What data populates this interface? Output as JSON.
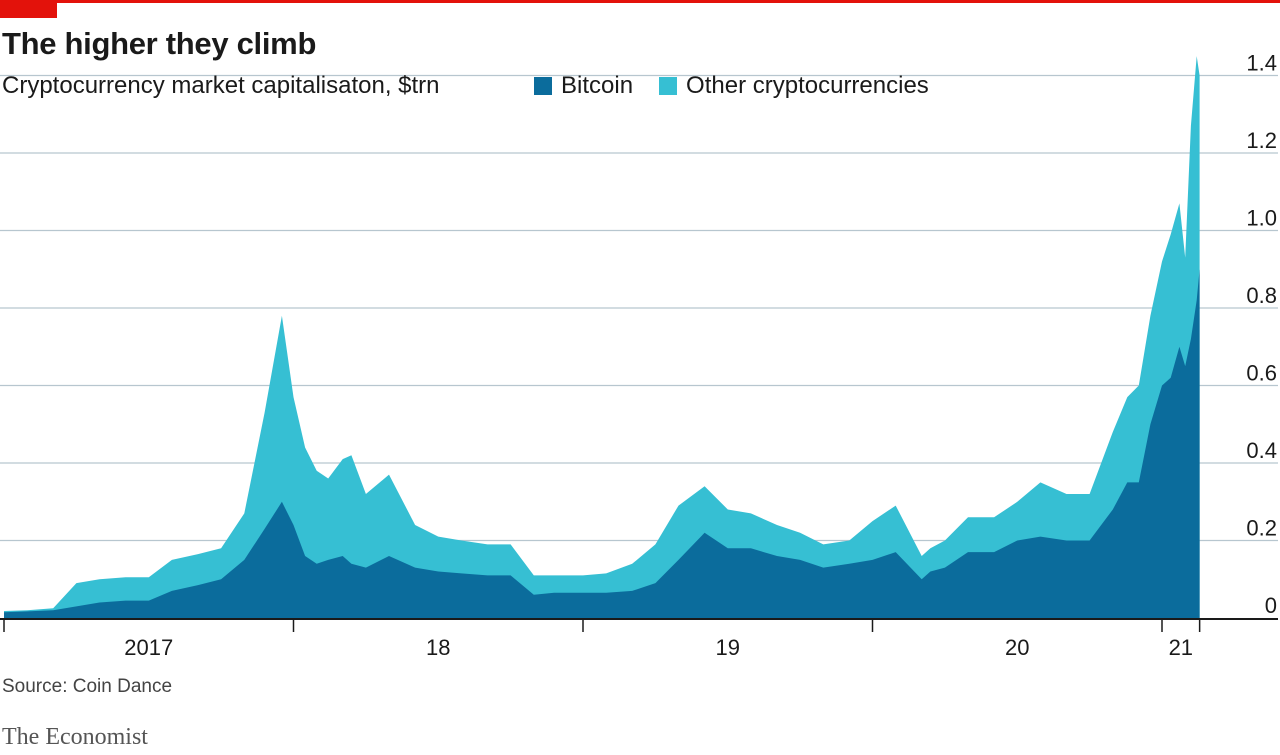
{
  "header": {
    "title": "The higher they climb",
    "subtitle": "Cryptocurrency market capitalisaton, $trn"
  },
  "footer": {
    "source": "Source: Coin Dance",
    "brand": "The Economist"
  },
  "colors": {
    "accent_red": "#e3120b",
    "bitcoin": "#0b6c9c",
    "other": "#36bfd3",
    "grid": "#b7c6cf"
  },
  "chart_data": {
    "type": "area",
    "stacked": true,
    "title": "The higher they climb",
    "subtitle": "Cryptocurrency market capitalisaton, $trn",
    "ylim": [
      0,
      1.45
    ],
    "y_ticks": [
      {
        "value": 0,
        "label": "0"
      },
      {
        "value": 0.2,
        "label": "0.2"
      },
      {
        "value": 0.4,
        "label": "0.4"
      },
      {
        "value": 0.6,
        "label": "0.6"
      },
      {
        "value": 0.8,
        "label": "0.8"
      },
      {
        "value": 1.0,
        "label": "1.0"
      },
      {
        "value": 1.2,
        "label": "1.2"
      },
      {
        "value": 1.4,
        "label": "1.4"
      }
    ],
    "y_axis_side": "right",
    "grid": true,
    "legend_position": "top",
    "x_ticks": [
      {
        "value": 2017,
        "label": "2017"
      },
      {
        "value": 2018,
        "label": "18"
      },
      {
        "value": 2019,
        "label": "19"
      },
      {
        "value": 2020,
        "label": "20"
      },
      {
        "value": 2021,
        "label": "21"
      }
    ],
    "x_boundaries": [
      2017,
      2018,
      2019,
      2020,
      2021
    ],
    "xlim": [
      2017.0,
      2021.13
    ],
    "x": [
      2017.0,
      2017.08,
      2017.17,
      2017.25,
      2017.33,
      2017.42,
      2017.5,
      2017.58,
      2017.67,
      2017.75,
      2017.83,
      2017.9,
      2017.96,
      2018.0,
      2018.04,
      2018.08,
      2018.12,
      2018.17,
      2018.2,
      2018.25,
      2018.33,
      2018.42,
      2018.5,
      2018.58,
      2018.67,
      2018.75,
      2018.83,
      2018.9,
      2019.0,
      2019.08,
      2019.17,
      2019.25,
      2019.33,
      2019.42,
      2019.5,
      2019.58,
      2019.67,
      2019.75,
      2019.83,
      2019.92,
      2020.0,
      2020.08,
      2020.17,
      2020.2,
      2020.25,
      2020.33,
      2020.42,
      2020.5,
      2020.58,
      2020.67,
      2020.75,
      2020.83,
      2020.88,
      2020.92,
      2020.96,
      2021.0,
      2021.03,
      2021.06,
      2021.08,
      2021.1,
      2021.12,
      2021.13
    ],
    "series": [
      {
        "name": "Bitcoin",
        "values": [
          0.015,
          0.017,
          0.02,
          0.03,
          0.04,
          0.045,
          0.045,
          0.07,
          0.085,
          0.1,
          0.15,
          0.23,
          0.3,
          0.24,
          0.16,
          0.14,
          0.15,
          0.16,
          0.14,
          0.13,
          0.16,
          0.13,
          0.12,
          0.115,
          0.11,
          0.11,
          0.06,
          0.065,
          0.065,
          0.065,
          0.07,
          0.09,
          0.15,
          0.22,
          0.18,
          0.18,
          0.16,
          0.15,
          0.13,
          0.14,
          0.15,
          0.17,
          0.1,
          0.12,
          0.13,
          0.17,
          0.17,
          0.2,
          0.21,
          0.2,
          0.2,
          0.28,
          0.35,
          0.35,
          0.5,
          0.6,
          0.62,
          0.7,
          0.65,
          0.72,
          0.82,
          0.9
        ]
      },
      {
        "name": "Other cryptocurrencies",
        "values": [
          0.003,
          0.003,
          0.005,
          0.06,
          0.06,
          0.06,
          0.06,
          0.08,
          0.08,
          0.08,
          0.12,
          0.3,
          0.48,
          0.33,
          0.28,
          0.24,
          0.21,
          0.25,
          0.28,
          0.19,
          0.21,
          0.11,
          0.09,
          0.085,
          0.08,
          0.08,
          0.05,
          0.045,
          0.045,
          0.05,
          0.07,
          0.1,
          0.14,
          0.12,
          0.1,
          0.09,
          0.08,
          0.07,
          0.06,
          0.06,
          0.1,
          0.12,
          0.06,
          0.06,
          0.07,
          0.09,
          0.09,
          0.1,
          0.14,
          0.12,
          0.12,
          0.2,
          0.22,
          0.25,
          0.28,
          0.32,
          0.37,
          0.37,
          0.28,
          0.55,
          0.63,
          0.5
        ]
      }
    ]
  }
}
